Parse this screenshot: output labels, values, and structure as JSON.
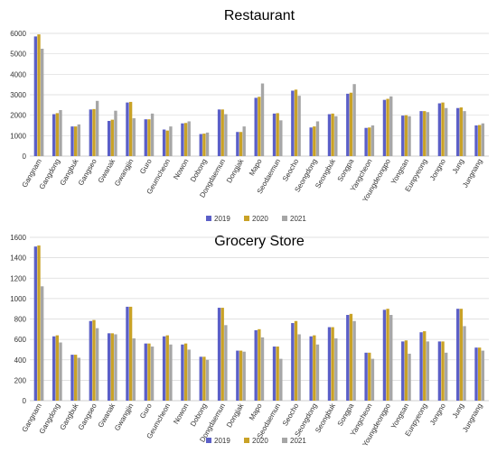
{
  "colors": {
    "2019": "#5b5fc7",
    "2020": "#c9a227",
    "2021": "#a6a6a6"
  },
  "chart_data": [
    {
      "type": "bar",
      "title": "Restaurant",
      "ylim": [
        0,
        6000
      ],
      "yticks": [
        "0",
        "1000",
        "2000",
        "3000",
        "4000",
        "5000",
        "6000"
      ],
      "grid": true,
      "legend": "bottom",
      "categories": [
        "Gangnam",
        "Gangdong",
        "Gangbuk",
        "Gangseo",
        "Gwanak",
        "Gwangjin",
        "Guro",
        "Geumcheon",
        "Nowon",
        "Dobong",
        "Dongdaemun",
        "Dongjak",
        "Mapo",
        "Seodaemun",
        "Seocho",
        "Seongdong",
        "Seongbuk",
        "Songpa",
        "Yangcheon",
        "Youngdeongpo",
        "Yongsan",
        "Eunpyeong",
        "Jongno",
        "Jung",
        "Jungnang"
      ],
      "series": [
        {
          "name": "2019",
          "values": [
            5850,
            2050,
            1450,
            2280,
            1720,
            2620,
            1800,
            1300,
            1600,
            1080,
            2280,
            1180,
            2850,
            2080,
            3200,
            1400,
            2050,
            3050,
            1380,
            2750,
            1980,
            2200,
            2580,
            2350,
            1500
          ]
        },
        {
          "name": "2020",
          "values": [
            5950,
            2100,
            1450,
            2300,
            1780,
            2650,
            1800,
            1250,
            1620,
            1100,
            2280,
            1180,
            2900,
            2100,
            3250,
            1450,
            2080,
            3100,
            1400,
            2800,
            2000,
            2200,
            2620,
            2380,
            1520
          ]
        },
        {
          "name": "2021",
          "values": [
            5250,
            2250,
            1550,
            2700,
            2220,
            1850,
            2080,
            1450,
            1700,
            1150,
            2050,
            1450,
            3550,
            1750,
            2950,
            1700,
            1950,
            3520,
            1500,
            2920,
            1950,
            2150,
            2350,
            2200,
            1600
          ]
        }
      ]
    },
    {
      "type": "bar",
      "title": "Grocery Store",
      "ylim": [
        0,
        1600
      ],
      "yticks": [
        "0",
        "200",
        "400",
        "600",
        "800",
        "1000",
        "1200",
        "1400",
        "1600"
      ],
      "grid": true,
      "legend": "bottom",
      "categories": [
        "Gangnam",
        "Gangdong",
        "Gangbuk",
        "Gangseo",
        "Gwanak",
        "Gwangjin",
        "Guro",
        "Geumcheon",
        "Nowon",
        "Dobong",
        "Dongdaemun",
        "Dongjak",
        "Mapo",
        "Seodaemun",
        "Seocho",
        "Seongdong",
        "Seongbuk",
        "Songpa",
        "Yangcheon",
        "Youngdeongpo",
        "Yongsan",
        "Eunpyeong",
        "Jongno",
        "Jung",
        "Jungnang"
      ],
      "series": [
        {
          "name": "2019",
          "values": [
            1510,
            630,
            450,
            780,
            660,
            920,
            560,
            630,
            550,
            430,
            910,
            490,
            690,
            530,
            760,
            630,
            720,
            840,
            470,
            890,
            580,
            670,
            580,
            900,
            520
          ]
        },
        {
          "name": "2020",
          "values": [
            1520,
            640,
            450,
            790,
            660,
            920,
            560,
            640,
            560,
            430,
            910,
            490,
            700,
            530,
            780,
            640,
            720,
            850,
            470,
            900,
            590,
            680,
            580,
            900,
            520
          ]
        },
        {
          "name": "2021",
          "values": [
            1120,
            570,
            420,
            710,
            650,
            610,
            530,
            550,
            500,
            400,
            740,
            480,
            620,
            410,
            650,
            550,
            610,
            780,
            410,
            840,
            460,
            580,
            470,
            730,
            490
          ]
        }
      ]
    }
  ]
}
